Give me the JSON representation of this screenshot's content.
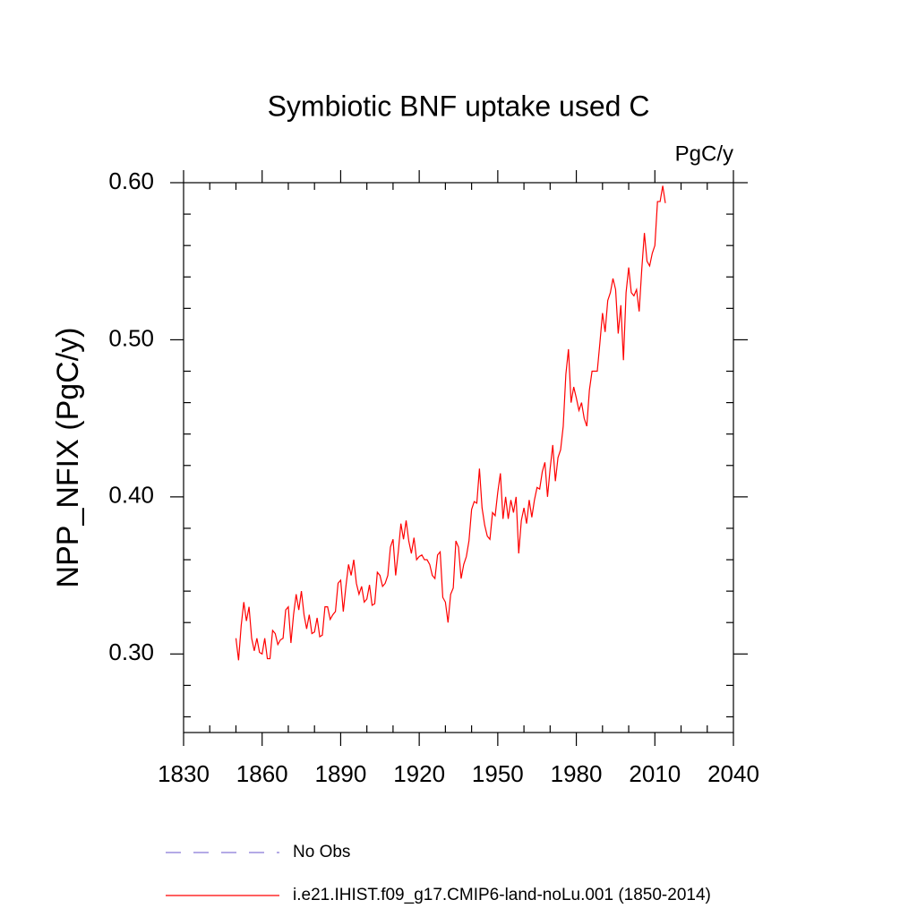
{
  "chart_data": {
    "type": "line",
    "title": "Symbiotic BNF uptake used C",
    "units": "PgC/y",
    "y_label": "NPP_NFIX  (PgC/y)",
    "xlim": [
      1830,
      2040
    ],
    "xticks": [
      1830,
      1860,
      1890,
      1920,
      1950,
      1980,
      2010,
      2040
    ],
    "xminorticks": [
      1840,
      1850,
      1870,
      1880,
      1900,
      1910,
      1930,
      1940,
      1960,
      1970,
      1990,
      2000,
      2020,
      2030
    ],
    "ylim": [
      0.25,
      0.6
    ],
    "yticks": [
      {
        "value": 0.3,
        "label": "0.30"
      },
      {
        "value": 0.4,
        "label": "0.40"
      },
      {
        "value": 0.5,
        "label": "0.50"
      },
      {
        "value": 0.6,
        "label": "0.60"
      }
    ],
    "yminorticks": [
      0.26,
      0.28,
      0.32,
      0.34,
      0.36,
      0.38,
      0.42,
      0.44,
      0.46,
      0.48,
      0.52,
      0.54,
      0.56,
      0.58
    ],
    "legend_extra": [
      {
        "name": "No Obs",
        "color": "#8878d8",
        "dashed": true
      }
    ],
    "x": [
      1850,
      1851,
      1852,
      1853,
      1854,
      1855,
      1856,
      1857,
      1858,
      1859,
      1860,
      1861,
      1862,
      1863,
      1864,
      1865,
      1866,
      1867,
      1868,
      1869,
      1870,
      1871,
      1872,
      1873,
      1874,
      1875,
      1876,
      1877,
      1878,
      1879,
      1880,
      1881,
      1882,
      1883,
      1884,
      1885,
      1886,
      1887,
      1888,
      1889,
      1890,
      1891,
      1892,
      1893,
      1894,
      1895,
      1896,
      1897,
      1898,
      1899,
      1900,
      1901,
      1902,
      1903,
      1904,
      1905,
      1906,
      1907,
      1908,
      1909,
      1910,
      1911,
      1912,
      1913,
      1914,
      1915,
      1916,
      1917,
      1918,
      1919,
      1920,
      1921,
      1922,
      1923,
      1924,
      1925,
      1926,
      1927,
      1928,
      1929,
      1930,
      1931,
      1932,
      1933,
      1934,
      1935,
      1936,
      1937,
      1938,
      1939,
      1940,
      1941,
      1942,
      1943,
      1944,
      1945,
      1946,
      1947,
      1948,
      1949,
      1950,
      1951,
      1952,
      1953,
      1954,
      1955,
      1956,
      1957,
      1958,
      1959,
      1960,
      1961,
      1962,
      1963,
      1964,
      1965,
      1966,
      1967,
      1968,
      1969,
      1970,
      1971,
      1972,
      1973,
      1974,
      1975,
      1976,
      1977,
      1978,
      1979,
      1980,
      1981,
      1982,
      1983,
      1984,
      1985,
      1986,
      1987,
      1988,
      1989,
      1990,
      1991,
      1992,
      1993,
      1994,
      1995,
      1996,
      1997,
      1998,
      1999,
      2000,
      2001,
      2002,
      2003,
      2004,
      2005,
      2006,
      2007,
      2008,
      2009,
      2010,
      2011,
      2012,
      2013,
      2014
    ],
    "series": [
      {
        "name": "i.e21.IHIST.f09_g17.CMIP6-land-noLu.001 (1850-2014)",
        "color": "#ff0000",
        "values": [
          0.31,
          0.296,
          0.318,
          0.333,
          0.321,
          0.33,
          0.31,
          0.302,
          0.31,
          0.301,
          0.3,
          0.31,
          0.297,
          0.297,
          0.315,
          0.313,
          0.306,
          0.309,
          0.31,
          0.328,
          0.33,
          0.307,
          0.325,
          0.338,
          0.328,
          0.34,
          0.325,
          0.316,
          0.325,
          0.313,
          0.314,
          0.323,
          0.311,
          0.312,
          0.33,
          0.33,
          0.322,
          0.325,
          0.327,
          0.345,
          0.347,
          0.327,
          0.343,
          0.357,
          0.35,
          0.36,
          0.345,
          0.338,
          0.343,
          0.333,
          0.335,
          0.344,
          0.331,
          0.332,
          0.352,
          0.35,
          0.343,
          0.345,
          0.35,
          0.368,
          0.373,
          0.35,
          0.365,
          0.383,
          0.373,
          0.385,
          0.372,
          0.364,
          0.374,
          0.36,
          0.362,
          0.363,
          0.36,
          0.36,
          0.357,
          0.35,
          0.348,
          0.363,
          0.365,
          0.336,
          0.333,
          0.32,
          0.338,
          0.342,
          0.372,
          0.368,
          0.348,
          0.357,
          0.362,
          0.372,
          0.392,
          0.397,
          0.396,
          0.418,
          0.393,
          0.382,
          0.375,
          0.373,
          0.39,
          0.388,
          0.403,
          0.415,
          0.386,
          0.4,
          0.386,
          0.398,
          0.39,
          0.4,
          0.364,
          0.385,
          0.393,
          0.383,
          0.398,
          0.387,
          0.398,
          0.406,
          0.405,
          0.416,
          0.422,
          0.4,
          0.418,
          0.433,
          0.41,
          0.425,
          0.43,
          0.445,
          0.478,
          0.494,
          0.46,
          0.47,
          0.463,
          0.455,
          0.46,
          0.45,
          0.445,
          0.468,
          0.48,
          0.48,
          0.48,
          0.498,
          0.517,
          0.505,
          0.525,
          0.53,
          0.539,
          0.532,
          0.504,
          0.522,
          0.487,
          0.53,
          0.546,
          0.53,
          0.528,
          0.532,
          0.518,
          0.545,
          0.568,
          0.55,
          0.547,
          0.555,
          0.56,
          0.588,
          0.588,
          0.598,
          0.587
        ]
      }
    ]
  }
}
